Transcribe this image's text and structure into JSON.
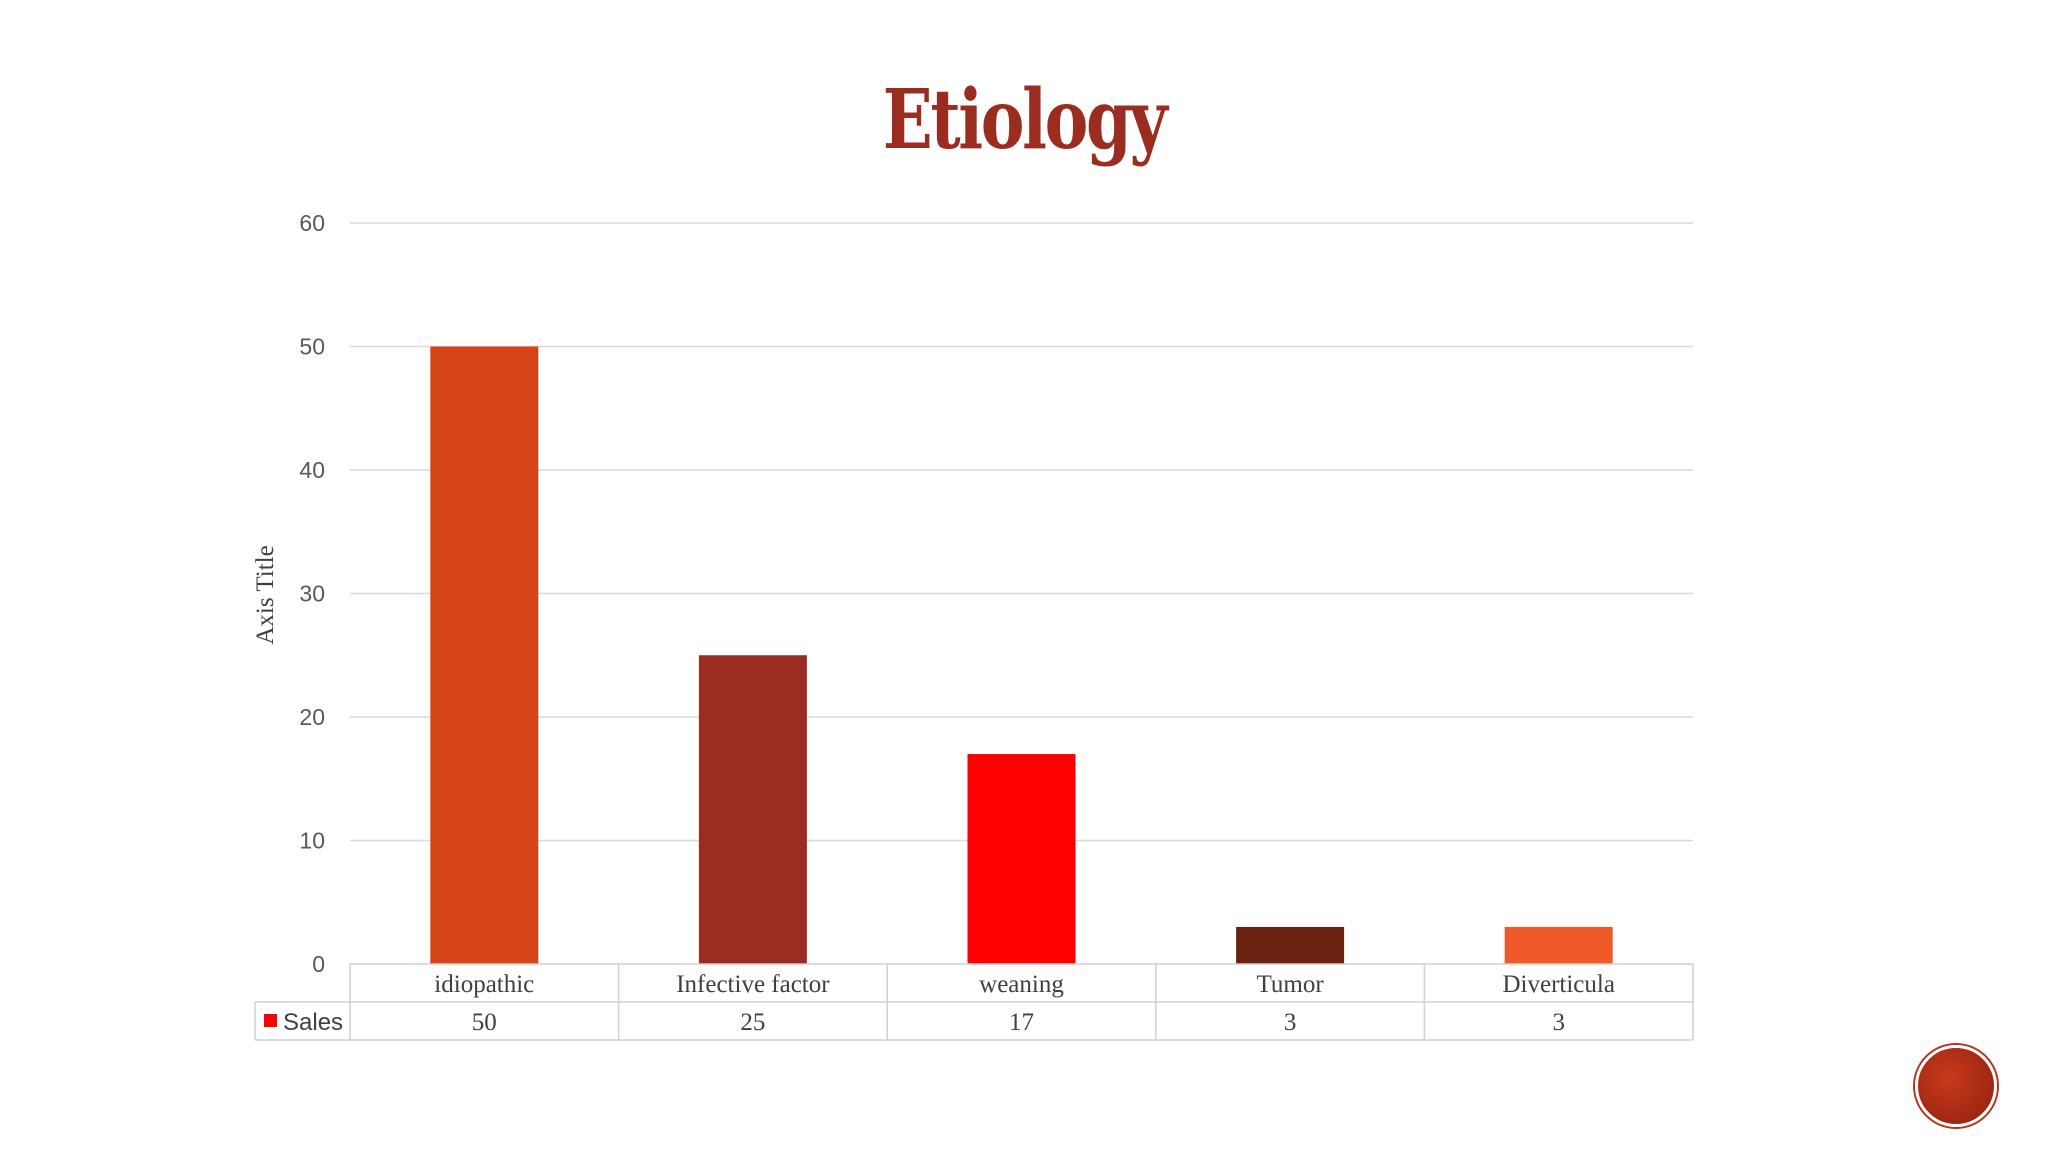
{
  "slide": {
    "title": "Etiology"
  },
  "chart_data": {
    "type": "bar",
    "title": "",
    "categories": [
      "idiopathic",
      "Infective factor",
      "weaning",
      "Tumor",
      "Diverticula"
    ],
    "series": [
      {
        "name": "Sales",
        "values": [
          50,
          25,
          17,
          3,
          3
        ],
        "colors": [
          "#d64518",
          "#9c2b21",
          "#ff0000",
          "#6b2210",
          "#f05a2a"
        ]
      }
    ],
    "legend_color": "#ff0000",
    "xlabel": "",
    "ylabel": "Axis Title",
    "ylim": [
      0,
      60
    ],
    "yticks": [
      0,
      10,
      20,
      30,
      40,
      50,
      60
    ],
    "grid": true,
    "data_table": true
  }
}
